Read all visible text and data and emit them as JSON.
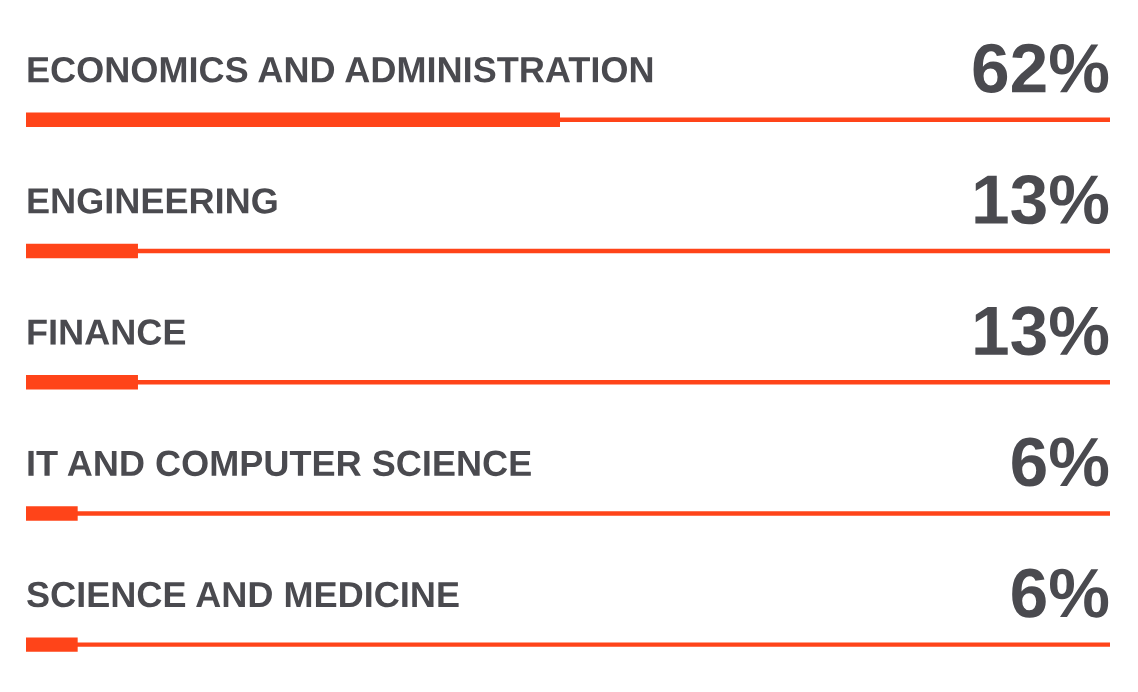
{
  "chart_data": {
    "type": "bar",
    "orientation": "horizontal",
    "categories": [
      "ECONOMICS AND ADMINISTRATION",
      "ENGINEERING",
      "FINANCE",
      "IT AND COMPUTER SCIENCE",
      "SCIENCE AND MEDICINE"
    ],
    "series": [
      {
        "color": "#ff4419",
        "values": [
          62,
          13,
          13,
          6,
          6
        ],
        "value_labels": [
          "62%",
          "13%",
          "13%",
          "6%",
          "6%"
        ]
      }
    ],
    "grid": "y",
    "tick_labels": false
  }
}
